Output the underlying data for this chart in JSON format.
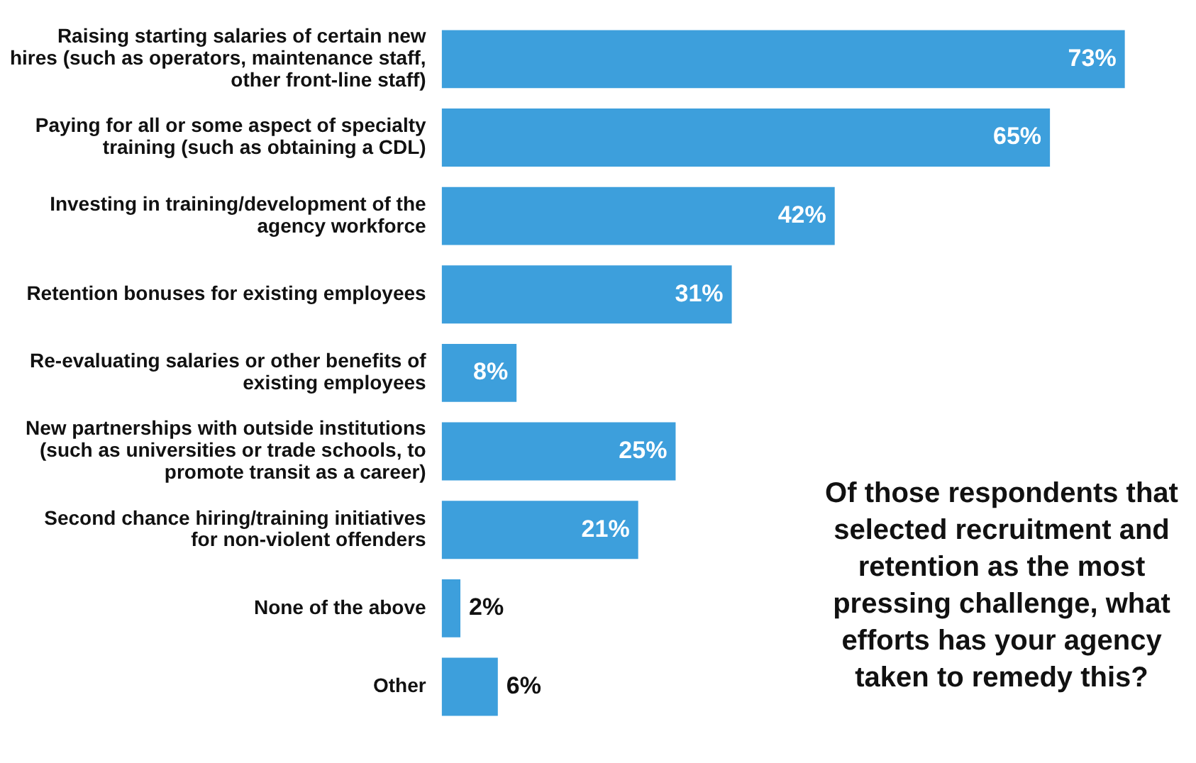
{
  "chart_data": {
    "type": "bar",
    "orientation": "horizontal",
    "title": "Of those respondents that selected recruitment and retention as the most pressing challenge, what efforts has your agency taken to remedy this?",
    "categories": [
      "Raising starting salaries of certain new hires (such as operators, maintenance staff, other front-line staff)",
      "Paying for all or some aspect of specialty training (such as obtaining a CDL)",
      "Investing in training/development of the agency workforce",
      "Retention bonuses for existing employees",
      "Re-evaluating salaries or other benefits of existing employees",
      "New partnerships with outside institutions (such as universities or trade schools, to promote transit as a career)",
      "Second chance hiring/training initiatives for non-violent offenders",
      "None of the above",
      "Other"
    ],
    "values": [
      73,
      65,
      42,
      31,
      8,
      25,
      21,
      2,
      6
    ],
    "value_labels": [
      "73%",
      "65%",
      "42%",
      "31%",
      "8%",
      "25%",
      "21%",
      "2%",
      "6%"
    ],
    "color": "#3d9fdc"
  }
}
